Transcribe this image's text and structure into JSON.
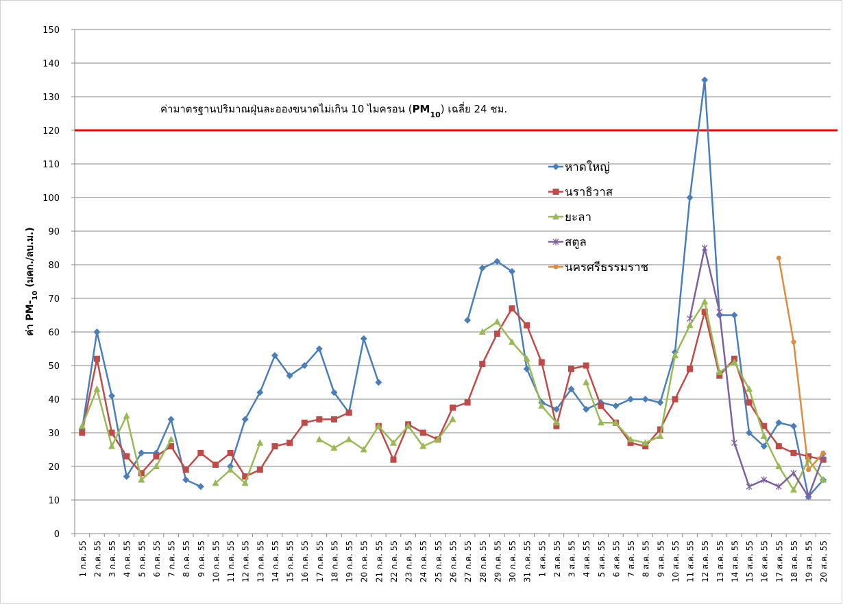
{
  "chart_data": {
    "type": "line",
    "y_label": {
      "parts": [
        "ค่า PM-",
        "10",
        " (มคก./ลบ.ม.)"
      ]
    },
    "annotation": {
      "parts": [
        "ค่ามาตรฐานปริมาณฝุ่นละอองขนาดไม่เกิน 10 ไมครอน (",
        "PM",
        "10",
        ") เฉลี่ย 24 ชม."
      ],
      "value": 120,
      "color": "#ff0000"
    },
    "categories": [
      "1 ก.ค. 55",
      "2 ก.ค. 55",
      "3 ก.ค. 55",
      "4 ก.ค. 55",
      "5 ก.ค. 55",
      "6 ก.ค. 55",
      "7 ก.ค. 55",
      "8 ก.ค. 55",
      "9 ก.ค. 55",
      "10 ก.ค. 55",
      "11 ก.ค. 55",
      "12 ก.ค. 55",
      "13 ก.ค. 55",
      "14 ก.ค. 55",
      "15 ก.ค. 55",
      "16 ก.ค. 55",
      "17 ก.ค. 55",
      "18 ก.ค. 55",
      "19 ก.ค. 55",
      "20 ก.ค. 55",
      "21 ก.ค. 55",
      "22 ก.ค. 55",
      "23 ก.ค. 55",
      "24 ก.ค. 55",
      "25 ก.ค. 55",
      "26 ก.ค. 55",
      "27 ก.ค. 55",
      "28 ก.ค. 55",
      "29 ก.ค. 55",
      "30 ก.ค. 55",
      "31 ก.ค. 55",
      "1 ส.ค. 55",
      "2 ส.ค. 55",
      "3 ส.ค. 55",
      "4 ส.ค. 55",
      "5 ส.ค. 55",
      "6 ส.ค. 55",
      "7 ส.ค. 55",
      "8 ส.ค. 55",
      "9 ส.ค. 55",
      "10 ส.ค. 55",
      "11 ส.ค. 55",
      "12 ส.ค. 55",
      "13 ส.ค. 55",
      "14 ส.ค. 55",
      "15 ส.ค. 55",
      "16 ส.ค. 55",
      "17 ส.ค. 55",
      "18 ส.ค. 55",
      "19 ส.ค. 55",
      "20 ส.ค. 55"
    ],
    "series": [
      {
        "name": "หาดใหญ่",
        "color": "#4a7ebb",
        "marker": "diamond",
        "values": [
          31,
          60,
          41,
          17,
          24,
          24,
          34,
          16,
          14,
          null,
          20,
          34,
          42,
          53,
          47,
          50,
          55,
          42,
          36,
          58,
          45,
          null,
          null,
          null,
          null,
          null,
          63.5,
          79,
          81,
          78,
          49,
          39,
          37,
          43,
          37,
          39,
          38,
          40,
          40,
          39,
          54,
          100,
          135,
          65,
          65,
          30,
          26,
          33,
          32,
          11,
          16
        ]
      },
      {
        "name": "นราธิวาส",
        "color": "#be4b48",
        "marker": "square",
        "values": [
          30,
          52,
          30,
          23,
          18,
          23,
          26,
          19,
          24,
          20.5,
          24,
          17,
          19,
          26,
          27,
          33,
          34,
          34,
          36,
          null,
          32,
          22,
          32.5,
          30,
          28,
          37.5,
          39,
          50.5,
          59.5,
          67,
          62,
          51,
          32,
          49,
          50,
          38,
          33,
          27,
          26,
          31,
          40,
          49,
          66,
          47,
          52,
          39,
          32,
          26,
          24,
          23,
          22
        ]
      },
      {
        "name": "ยะลา",
        "color": "#98b954",
        "marker": "triangle",
        "values": [
          32,
          43,
          26,
          35,
          16,
          20,
          28,
          null,
          null,
          15,
          19,
          15,
          27,
          null,
          null,
          null,
          28,
          25.5,
          28,
          25,
          32,
          27,
          32,
          26,
          28,
          34,
          null,
          60,
          63,
          57,
          52,
          38,
          33,
          null,
          45,
          33,
          33,
          28,
          27,
          29,
          53,
          62,
          69,
          48,
          51,
          43,
          29,
          20,
          13,
          22,
          16
        ]
      },
      {
        "name": "สตูล",
        "color": "#7d60a0",
        "marker": "star",
        "values": [
          null,
          null,
          null,
          null,
          null,
          null,
          null,
          null,
          null,
          null,
          null,
          null,
          null,
          null,
          null,
          null,
          null,
          null,
          null,
          null,
          null,
          null,
          null,
          null,
          null,
          null,
          null,
          null,
          null,
          null,
          null,
          null,
          null,
          null,
          null,
          null,
          null,
          null,
          null,
          null,
          null,
          64,
          85,
          66,
          27,
          14,
          16,
          14,
          18,
          11,
          23
        ]
      },
      {
        "name": "นครศรีธรรมราช",
        "color": "#dd8b3e",
        "marker": "circle",
        "values": [
          null,
          null,
          null,
          null,
          null,
          null,
          null,
          null,
          null,
          null,
          null,
          null,
          null,
          null,
          null,
          null,
          null,
          null,
          null,
          null,
          null,
          null,
          null,
          null,
          null,
          null,
          null,
          null,
          null,
          null,
          null,
          null,
          null,
          null,
          null,
          null,
          null,
          null,
          null,
          null,
          null,
          null,
          null,
          null,
          null,
          null,
          null,
          82,
          57,
          19,
          24
        ]
      }
    ],
    "ylim": [
      0,
      150
    ],
    "yticks": [
      0,
      10,
      20,
      30,
      40,
      50,
      60,
      70,
      80,
      90,
      100,
      110,
      120,
      130,
      140,
      150
    ],
    "grid": true
  }
}
